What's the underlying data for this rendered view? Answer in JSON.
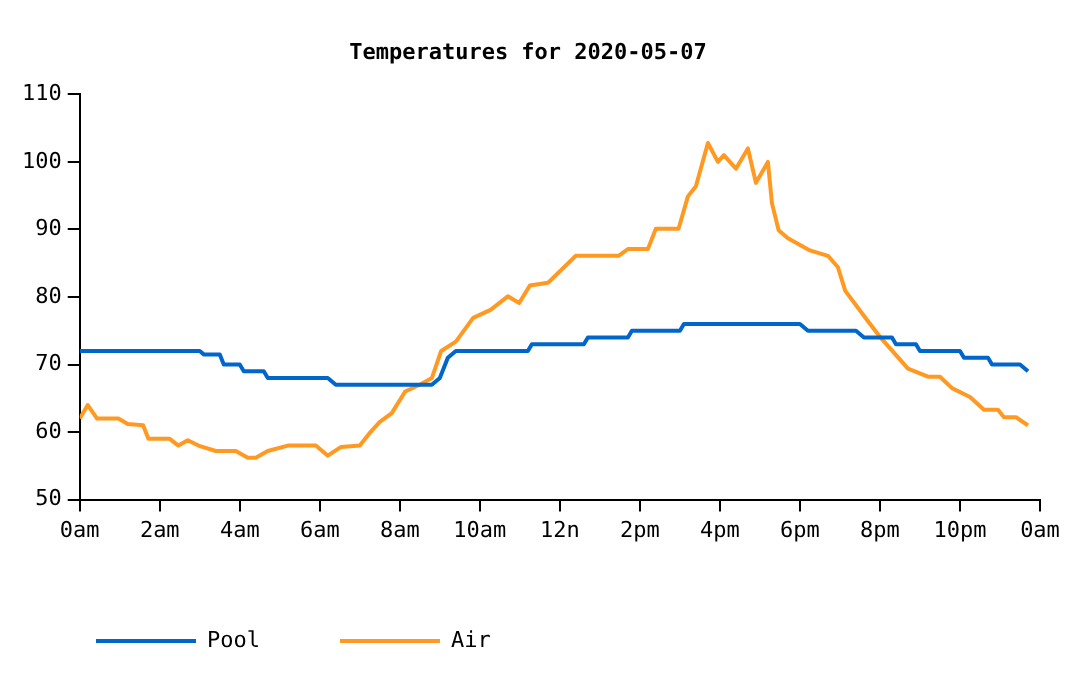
{
  "chart_data": {
    "type": "line",
    "title": "Temperatures for 2020-05-07",
    "xlim": [
      "2020-05-07T00:00",
      "2020-05-08T00:00"
    ],
    "xticks": [
      {
        "value": "2020-05-07T00:00",
        "label": "0am"
      },
      {
        "value": "2020-05-07T02:00",
        "label": "2am"
      },
      {
        "value": "2020-05-07T04:00",
        "label": "4am"
      },
      {
        "value": "2020-05-07T06:00",
        "label": "6am"
      },
      {
        "value": "2020-05-07T08:00",
        "label": "8am"
      },
      {
        "value": "2020-05-07T10:00",
        "label": "10am"
      },
      {
        "value": "2020-05-07T12:00",
        "label": "12n"
      },
      {
        "value": "2020-05-07T14:00",
        "label": "2pm"
      },
      {
        "value": "2020-05-07T16:00",
        "label": "4pm"
      },
      {
        "value": "2020-05-07T18:00",
        "label": "6pm"
      },
      {
        "value": "2020-05-07T20:00",
        "label": "8pm"
      },
      {
        "value": "2020-05-07T22:00",
        "label": "10pm"
      },
      {
        "value": "2020-05-08T00:00",
        "label": "0am"
      }
    ],
    "ylim": [
      50,
      110
    ],
    "yticks": [
      50,
      60,
      70,
      80,
      90,
      100,
      110
    ],
    "grid": false,
    "legend": "bottom left",
    "marker": "none",
    "line_style": "solid",
    "series": [
      {
        "name": "Pool",
        "color": "#0066cc",
        "x": [
          "2020-05-07T00:00",
          "2020-05-07T03:00",
          "2020-05-07T03:06",
          "2020-05-07T03:30",
          "2020-05-07T03:36",
          "2020-05-07T04:00",
          "2020-05-07T04:06",
          "2020-05-07T04:36",
          "2020-05-07T04:42",
          "2020-05-07T06:12",
          "2020-05-07T06:24",
          "2020-05-07T08:48",
          "2020-05-07T09:00",
          "2020-05-07T09:12",
          "2020-05-07T09:24",
          "2020-05-07T11:12",
          "2020-05-07T11:18",
          "2020-05-07T12:36",
          "2020-05-07T12:42",
          "2020-05-07T13:42",
          "2020-05-07T13:48",
          "2020-05-07T15:00",
          "2020-05-07T15:06",
          "2020-05-07T18:00",
          "2020-05-07T18:12",
          "2020-05-07T19:24",
          "2020-05-07T19:36",
          "2020-05-07T20:18",
          "2020-05-07T20:24",
          "2020-05-07T20:54",
          "2020-05-07T21:00",
          "2020-05-07T22:00",
          "2020-05-07T22:06",
          "2020-05-07T22:42",
          "2020-05-07T22:48",
          "2020-05-07T23:30",
          "2020-05-07T23:42"
        ],
        "values": [
          72,
          72,
          71.5,
          71.5,
          70,
          70,
          69,
          69,
          68,
          68,
          67,
          67,
          68,
          71,
          72,
          72,
          73,
          73,
          74,
          74,
          75,
          75,
          76,
          76,
          75,
          75,
          74,
          74,
          73,
          73,
          72,
          72,
          71,
          71,
          70,
          70,
          69
        ]
      },
      {
        "name": "Air",
        "color": "#ff9922",
        "x": [
          "2020-05-07T00:00",
          "2020-05-07T00:12",
          "2020-05-07T00:26",
          "2020-05-07T00:58",
          "2020-05-07T01:12",
          "2020-05-07T01:35",
          "2020-05-07T01:43",
          "2020-05-07T02:15",
          "2020-05-07T02:28",
          "2020-05-07T02:42",
          "2020-05-07T02:58",
          "2020-05-07T03:24",
          "2020-05-07T03:54",
          "2020-05-07T04:12",
          "2020-05-07T04:24",
          "2020-05-07T04:42",
          "2020-05-07T05:12",
          "2020-05-07T05:54",
          "2020-05-07T06:12",
          "2020-05-07T06:32",
          "2020-05-07T07:00",
          "2020-05-07T07:16",
          "2020-05-07T07:30",
          "2020-05-07T07:48",
          "2020-05-07T08:08",
          "2020-05-07T08:30",
          "2020-05-07T08:48",
          "2020-05-07T09:02",
          "2020-05-07T09:24",
          "2020-05-07T09:50",
          "2020-05-07T10:16",
          "2020-05-07T10:42",
          "2020-05-07T10:59",
          "2020-05-07T11:15",
          "2020-05-07T11:42",
          "2020-05-07T12:24",
          "2020-05-07T13:28",
          "2020-05-07T13:42",
          "2020-05-07T14:12",
          "2020-05-07T14:24",
          "2020-05-07T14:58",
          "2020-05-07T15:12",
          "2020-05-07T15:24",
          "2020-05-07T15:42",
          "2020-05-07T15:57",
          "2020-05-07T16:06",
          "2020-05-07T16:24",
          "2020-05-07T16:42",
          "2020-05-07T16:54",
          "2020-05-07T17:12",
          "2020-05-07T17:18",
          "2020-05-07T17:28",
          "2020-05-07T17:42",
          "2020-05-07T18:15",
          "2020-05-07T18:42",
          "2020-05-07T18:57",
          "2020-05-07T19:08",
          "2020-05-07T19:42",
          "2020-05-07T20:00",
          "2020-05-07T20:42",
          "2020-05-07T21:12",
          "2020-05-07T21:30",
          "2020-05-07T21:48",
          "2020-05-07T22:15",
          "2020-05-07T22:36",
          "2020-05-07T22:57",
          "2020-05-07T23:06",
          "2020-05-07T23:24",
          "2020-05-07T23:42"
        ],
        "values": [
          62,
          64,
          62,
          62,
          61.2,
          61,
          59,
          59,
          58,
          58.8,
          58,
          57.2,
          57.2,
          56.2,
          56.2,
          57.2,
          58,
          58,
          56.5,
          57.8,
          58,
          60,
          61.5,
          62.8,
          66,
          67,
          68,
          72,
          73.4,
          76.9,
          78.1,
          80.1,
          79.1,
          81.7,
          82.1,
          86.1,
          86.1,
          87.1,
          87.1,
          90.1,
          90.1,
          94.9,
          96.4,
          102.8,
          100,
          101,
          99,
          102,
          96.9,
          100,
          93.9,
          89.9,
          88.7,
          86.9,
          86.1,
          84.4,
          80.9,
          76.4,
          74.1,
          69.4,
          68.2,
          68.2,
          66.5,
          65.2,
          63.3,
          63.3,
          62.2,
          62.2,
          61
        ]
      }
    ]
  }
}
